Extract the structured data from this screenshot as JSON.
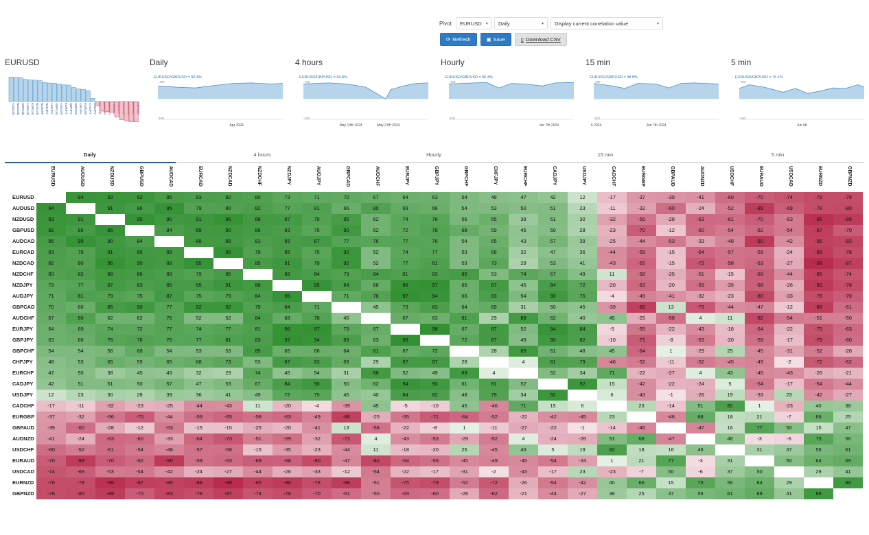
{
  "controls": {
    "pivot_label": "Pivot:",
    "pivot_value": "EURUSD",
    "period_value": "Daily",
    "mode_value": "Display current correlation value",
    "refresh_label": "Refresh",
    "save_label": "Save",
    "download_label": "Download CSV"
  },
  "panels": [
    {
      "title": "EURUSD"
    },
    {
      "title": "Daily",
      "series_label": "EURUSD/GBPUSD = 92.4%",
      "top_label": "100",
      "bottom_label": "-100",
      "date_labels": [
        "Apr 2024"
      ]
    },
    {
      "title": "4 hours",
      "series_label": "EURUSD/GBPUSD = 94.8%",
      "top_label": "100",
      "bottom_label": "-100",
      "date_labels": [
        "May 13th 2024",
        "May 27th 2024"
      ]
    },
    {
      "title": "Hourly",
      "series_label": "EURUSD/GBPUSD = 96.4%",
      "top_label": "100",
      "bottom_label": "-100",
      "date_labels": [
        "Jun 7th 2024"
      ]
    },
    {
      "title": "15 min",
      "series_label": "EURUSD/GBPUSD = 98.8%",
      "top_label": "100",
      "bottom_label": "-100",
      "date_labels": [
        "6 2024",
        "Jun 7th 2024"
      ]
    },
    {
      "title": "5 min",
      "series_label": "EURUSD/GBPUSD = 76.1%",
      "top_label": "100",
      "bottom_label": "-100",
      "date_labels": [
        "Jun 08"
      ]
    }
  ],
  "bar_chart": {
    "values": [
      94,
      93,
      92,
      85,
      83,
      82,
      80,
      73,
      71,
      70,
      67,
      64,
      63,
      54,
      48,
      47,
      42,
      12,
      -17,
      -37,
      -39,
      -41,
      -60,
      -70,
      -74,
      -78,
      -78
    ],
    "labels": [
      "AUDUSD",
      "NZDUSD",
      "GBPUSD",
      "AUDCAD",
      "EURCAD",
      "NZDCAD",
      "NZDCHF",
      "NZDJPY",
      "AUDJPY",
      "GBPCAD",
      "AUDCHF",
      "EURJPY",
      "GBPJPY",
      "GBPCHF",
      "CHFJPY",
      "EURCHF",
      "CADJPY",
      "USDJPY",
      "CADCHF",
      "EURGBP",
      "GBPAUD",
      "AUDNZD",
      "USDCHF",
      "EURAUD",
      "USDCAD",
      "EURNZD",
      "GBPNZD"
    ]
  },
  "tabs": [
    "Daily",
    "4 hours",
    "Hourly",
    "15 min",
    "5 min"
  ],
  "active_tab": "Daily",
  "columns": [
    "EURUSD",
    "AUDUSD",
    "NZDUSD",
    "GBPUSD",
    "AUDCAD",
    "EURCAD",
    "NZDCAD",
    "NZDCHF",
    "NZDJPY",
    "AUDJPY",
    "GBPCAD",
    "AUDCHF",
    "EURJPY",
    "GBPJPY",
    "GBPCHF",
    "CHFJPY",
    "EURCHF",
    "CADJPY",
    "USDJPY",
    "CADCHF",
    "EURGBP",
    "GBPAUD",
    "AUDNZD",
    "USDCHF",
    "EURAUD",
    "USDCAD",
    "EURNZD",
    "GBPNZD"
  ],
  "rows": [
    {
      "label": "EURUSD",
      "values": [
        "",
        "94",
        "93",
        "92",
        "85",
        "83",
        "82",
        "80",
        "73",
        "71",
        "70",
        "67",
        "64",
        "63",
        "54",
        "48",
        "47",
        "42",
        "12",
        "-17",
        "-37",
        "-39",
        "-41",
        "-60",
        "-70",
        "-74",
        "-78",
        "-78"
      ]
    },
    {
      "label": "AUDUSD",
      "values": [
        "94",
        "",
        "91",
        "86",
        "95",
        "79",
        "80",
        "82",
        "77",
        "81",
        "66",
        "80",
        "69",
        "66",
        "54",
        "53",
        "50",
        "51",
        "23",
        "-11",
        "-32",
        "-60",
        "-24",
        "-52",
        "-89",
        "-69",
        "-78",
        "-80"
      ]
    },
    {
      "label": "NZDUSD",
      "values": [
        "93",
        "91",
        "",
        "95",
        "90",
        "91",
        "96",
        "88",
        "87",
        "79",
        "85",
        "62",
        "74",
        "76",
        "56",
        "65",
        "38",
        "51",
        "30",
        "-32",
        "-56",
        "-28",
        "-63",
        "-61",
        "-70",
        "-53",
        "-95",
        "-89"
      ]
    },
    {
      "label": "GBPUSD",
      "values": [
        "92",
        "86",
        "95",
        "",
        "84",
        "89",
        "90",
        "86",
        "83",
        "75",
        "90",
        "62",
        "72",
        "78",
        "68",
        "59",
        "45",
        "50",
        "28",
        "-23",
        "-70",
        "-12",
        "-60",
        "-54",
        "-62",
        "-54",
        "-87",
        "-70"
      ]
    },
    {
      "label": "AUDCAD",
      "values": [
        "85",
        "95",
        "90",
        "84",
        "",
        "88",
        "88",
        "83",
        "85",
        "87",
        "77",
        "76",
        "77",
        "76",
        "54",
        "65",
        "43",
        "57",
        "39",
        "-25",
        "-44",
        "-53",
        "-33",
        "-48",
        "-90",
        "-42",
        "-85",
        "-83"
      ]
    },
    {
      "label": "EURCAD",
      "values": [
        "83",
        "79",
        "91",
        "89",
        "88",
        "",
        "95",
        "79",
        "85",
        "75",
        "92",
        "52",
        "74",
        "77",
        "53",
        "68",
        "32",
        "47",
        "36",
        "-44",
        "-59",
        "-15",
        "-64",
        "-57",
        "-59",
        "-24",
        "-88",
        "-78"
      ]
    },
    {
      "label": "NZDCAD",
      "values": [
        "82",
        "80",
        "96",
        "90",
        "88",
        "95",
        "",
        "85",
        "91",
        "79",
        "92",
        "52",
        "77",
        "81",
        "53",
        "73",
        "29",
        "53",
        "41",
        "-43",
        "-65",
        "-15",
        "-73",
        "-58",
        "-63",
        "-27",
        "-98",
        "-87"
      ]
    },
    {
      "label": "NZDCHF",
      "values": [
        "80",
        "82",
        "88",
        "86",
        "83",
        "79",
        "85",
        "",
        "88",
        "84",
        "79",
        "84",
        "81",
        "83",
        "85",
        "53",
        "74",
        "67",
        "49",
        "11",
        "-58",
        "-25",
        "-51",
        "-15",
        "-69",
        "-44",
        "-85",
        "-74"
      ]
    },
    {
      "label": "NZDJPY",
      "values": [
        "73",
        "77",
        "87",
        "83",
        "85",
        "85",
        "91",
        "88",
        "",
        "95",
        "84",
        "68",
        "96",
        "97",
        "65",
        "87",
        "45",
        "84",
        "72",
        "-20",
        "-63",
        "-20",
        "-59",
        "-35",
        "-68",
        "-26",
        "-90",
        "-78"
      ]
    },
    {
      "label": "AUDJPY",
      "values": [
        "71",
        "81",
        "79",
        "75",
        "87",
        "75",
        "79",
        "84",
        "95",
        "",
        "71",
        "78",
        "97",
        "94",
        "66",
        "83",
        "54",
        "90",
        "75",
        "-4",
        "-49",
        "-41",
        "-32",
        "-23",
        "-80",
        "-33",
        "-78",
        "-70"
      ]
    },
    {
      "label": "GBPCAD",
      "values": [
        "70",
        "66",
        "85",
        "90",
        "77",
        "92",
        "92",
        "79",
        "84",
        "71",
        "",
        "45",
        "73",
        "83",
        "64",
        "69",
        "31",
        "50",
        "45",
        "-39",
        "-86",
        "13",
        "-73",
        "-44",
        "-47",
        "-12",
        "-88",
        "-61"
      ]
    },
    {
      "label": "AUDCHF",
      "values": [
        "67",
        "80",
        "62",
        "62",
        "76",
        "52",
        "52",
        "84",
        "68",
        "78",
        "45",
        "",
        "67",
        "63",
        "81",
        "29",
        "88",
        "62",
        "40",
        "45",
        "-25",
        "-58",
        "4",
        "11",
        "-82",
        "-54",
        "-51",
        "-50"
      ]
    },
    {
      "label": "EURJPY",
      "values": [
        "64",
        "69",
        "74",
        "72",
        "77",
        "74",
        "77",
        "81",
        "96",
        "97",
        "73",
        "67",
        "",
        "98",
        "67",
        "87",
        "52",
        "94",
        "84",
        "-5",
        "-55",
        "-22",
        "-43",
        "-18",
        "-64",
        "-22",
        "-75",
        "-63"
      ]
    },
    {
      "label": "GBPJPY",
      "values": [
        "63",
        "66",
        "76",
        "78",
        "76",
        "77",
        "81",
        "83",
        "97",
        "94",
        "83",
        "63",
        "98",
        "",
        "72",
        "87",
        "49",
        "90",
        "82",
        "-10",
        "-71",
        "-8",
        "-53",
        "-20",
        "-59",
        "-17",
        "-79",
        "-60"
      ]
    },
    {
      "label": "GBPCHF",
      "values": [
        "54",
        "54",
        "56",
        "68",
        "54",
        "53",
        "53",
        "85",
        "65",
        "66",
        "64",
        "81",
        "67",
        "72",
        "",
        "28",
        "89",
        "61",
        "48",
        "45",
        "-64",
        "1",
        "-29",
        "25",
        "-45",
        "-31",
        "-52",
        "-28"
      ]
    },
    {
      "label": "CHFJPY",
      "values": [
        "48",
        "53",
        "65",
        "59",
        "65",
        "68",
        "73",
        "53",
        "87",
        "83",
        "69",
        "29",
        "87",
        "87",
        "28",
        "",
        "4",
        "81",
        "79",
        "-46",
        "-52",
        "-11",
        "-52",
        "-45",
        "-49",
        "-2",
        "-72",
        "-62"
      ]
    },
    {
      "label": "EURCHF",
      "values": [
        "47",
        "50",
        "38",
        "45",
        "43",
        "32",
        "29",
        "74",
        "45",
        "54",
        "31",
        "88",
        "52",
        "49",
        "89",
        "4",
        "",
        "52",
        "34",
        "71",
        "-22",
        "-27",
        "4",
        "43",
        "-45",
        "-43",
        "-26",
        "-21"
      ]
    },
    {
      "label": "CADJPY",
      "values": [
        "42",
        "51",
        "51",
        "50",
        "57",
        "47",
        "53",
        "67",
        "84",
        "90",
        "50",
        "62",
        "94",
        "90",
        "61",
        "81",
        "52",
        "",
        "92",
        "15",
        "-42",
        "-22",
        "-24",
        "5",
        "-54",
        "-17",
        "-54",
        "-44"
      ]
    },
    {
      "label": "USDJPY",
      "values": [
        "12",
        "23",
        "30",
        "28",
        "39",
        "36",
        "41",
        "49",
        "72",
        "75",
        "45",
        "40",
        "84",
        "82",
        "48",
        "79",
        "34",
        "92",
        "",
        "6",
        "-43",
        "-1",
        "-26",
        "19",
        "-33",
        "23",
        "-42",
        "-27"
      ]
    },
    {
      "label": "CADCHF",
      "values": [
        "-17",
        "-11",
        "-32",
        "-23",
        "-25",
        "-44",
        "-43",
        "11",
        "-20",
        "-4",
        "-39",
        "45",
        "-5",
        "-10",
        "45",
        "-46",
        "71",
        "15",
        "6",
        "",
        "23",
        "-14",
        "51",
        "82",
        "1",
        "-23",
        "40",
        "38"
      ]
    },
    {
      "label": "EURGBP",
      "values": [
        "-37",
        "-32",
        "-56",
        "-70",
        "-44",
        "-59",
        "-65",
        "-58",
        "-63",
        "-49",
        "-86",
        "-25",
        "-55",
        "-71",
        "-64",
        "-52",
        "-22",
        "-42",
        "-45",
        "23",
        "",
        "-46",
        "68",
        "18",
        "21",
        "-7",
        "66",
        "25"
      ]
    },
    {
      "label": "GBPAUD",
      "values": [
        "-39",
        "-60",
        "-28",
        "-12",
        "-53",
        "-15",
        "-15",
        "-25",
        "-20",
        "-41",
        "13",
        "-58",
        "-22",
        "-8",
        "1",
        "-11",
        "-27",
        "-22",
        "-1",
        "-14",
        "-46",
        "",
        "-47",
        "16",
        "77",
        "50",
        "15",
        "47"
      ]
    },
    {
      "label": "AUDNZD",
      "values": [
        "-41",
        "-24",
        "-63",
        "-60",
        "-33",
        "-64",
        "-73",
        "-51",
        "-59",
        "-32",
        "-73",
        "4",
        "-43",
        "-53",
        "-29",
        "-52",
        "4",
        "-24",
        "-26",
        "51",
        "68",
        "-47",
        "",
        "46",
        "-3",
        "-6",
        "75",
        "56"
      ]
    },
    {
      "label": "USDCHF",
      "values": [
        "-60",
        "-52",
        "-61",
        "-54",
        "-48",
        "-57",
        "-58",
        "-15",
        "-35",
        "-23",
        "-44",
        "11",
        "-18",
        "-20",
        "25",
        "-45",
        "43",
        "5",
        "19",
        "82",
        "18",
        "16",
        "46",
        "",
        "31",
        "37",
        "56",
        "61"
      ]
    },
    {
      "label": "EURAUD",
      "values": [
        "-70",
        "-89",
        "-70",
        "-62",
        "-90",
        "-59",
        "-63",
        "-69",
        "-68",
        "-80",
        "-47",
        "-82",
        "-64",
        "-59",
        "-45",
        "-49",
        "-45",
        "-54",
        "-33",
        "1",
        "21",
        "77",
        "-3",
        "31",
        "",
        "50",
        "64",
        "69"
      ]
    },
    {
      "label": "USDCAD",
      "values": [
        "-74",
        "-69",
        "-53",
        "-54",
        "-42",
        "-24",
        "-27",
        "-44",
        "-26",
        "-33",
        "-12",
        "-54",
        "-22",
        "-17",
        "-31",
        "-2",
        "-43",
        "-17",
        "23",
        "-23",
        "-7",
        "50",
        "-6",
        "37",
        "50",
        "",
        "29",
        "41"
      ]
    },
    {
      "label": "EURNZD",
      "values": [
        "-78",
        "-78",
        "-95",
        "-87",
        "-85",
        "-88",
        "-98",
        "-85",
        "-90",
        "-78",
        "-88",
        "-51",
        "-75",
        "-79",
        "-52",
        "-72",
        "-26",
        "-54",
        "-42",
        "40",
        "66",
        "15",
        "75",
        "56",
        "64",
        "29",
        "",
        "89"
      ]
    },
    {
      "label": "GBPNZD",
      "values": [
        "-78",
        "-80",
        "-89",
        "-70",
        "-83",
        "-78",
        "-87",
        "-74",
        "-78",
        "-70",
        "-61",
        "-50",
        "-63",
        "-60",
        "-28",
        "-62",
        "-21",
        "-44",
        "-27",
        "38",
        "25",
        "47",
        "56",
        "61",
        "69",
        "41",
        "89",
        ""
      ]
    }
  ],
  "colors": {
    "accent": "#2d7bc4",
    "positive": "#2f8f2f",
    "negative": "#b8294b",
    "chart_fill": "#b6d4ea",
    "chart_line": "#4a90c8"
  }
}
